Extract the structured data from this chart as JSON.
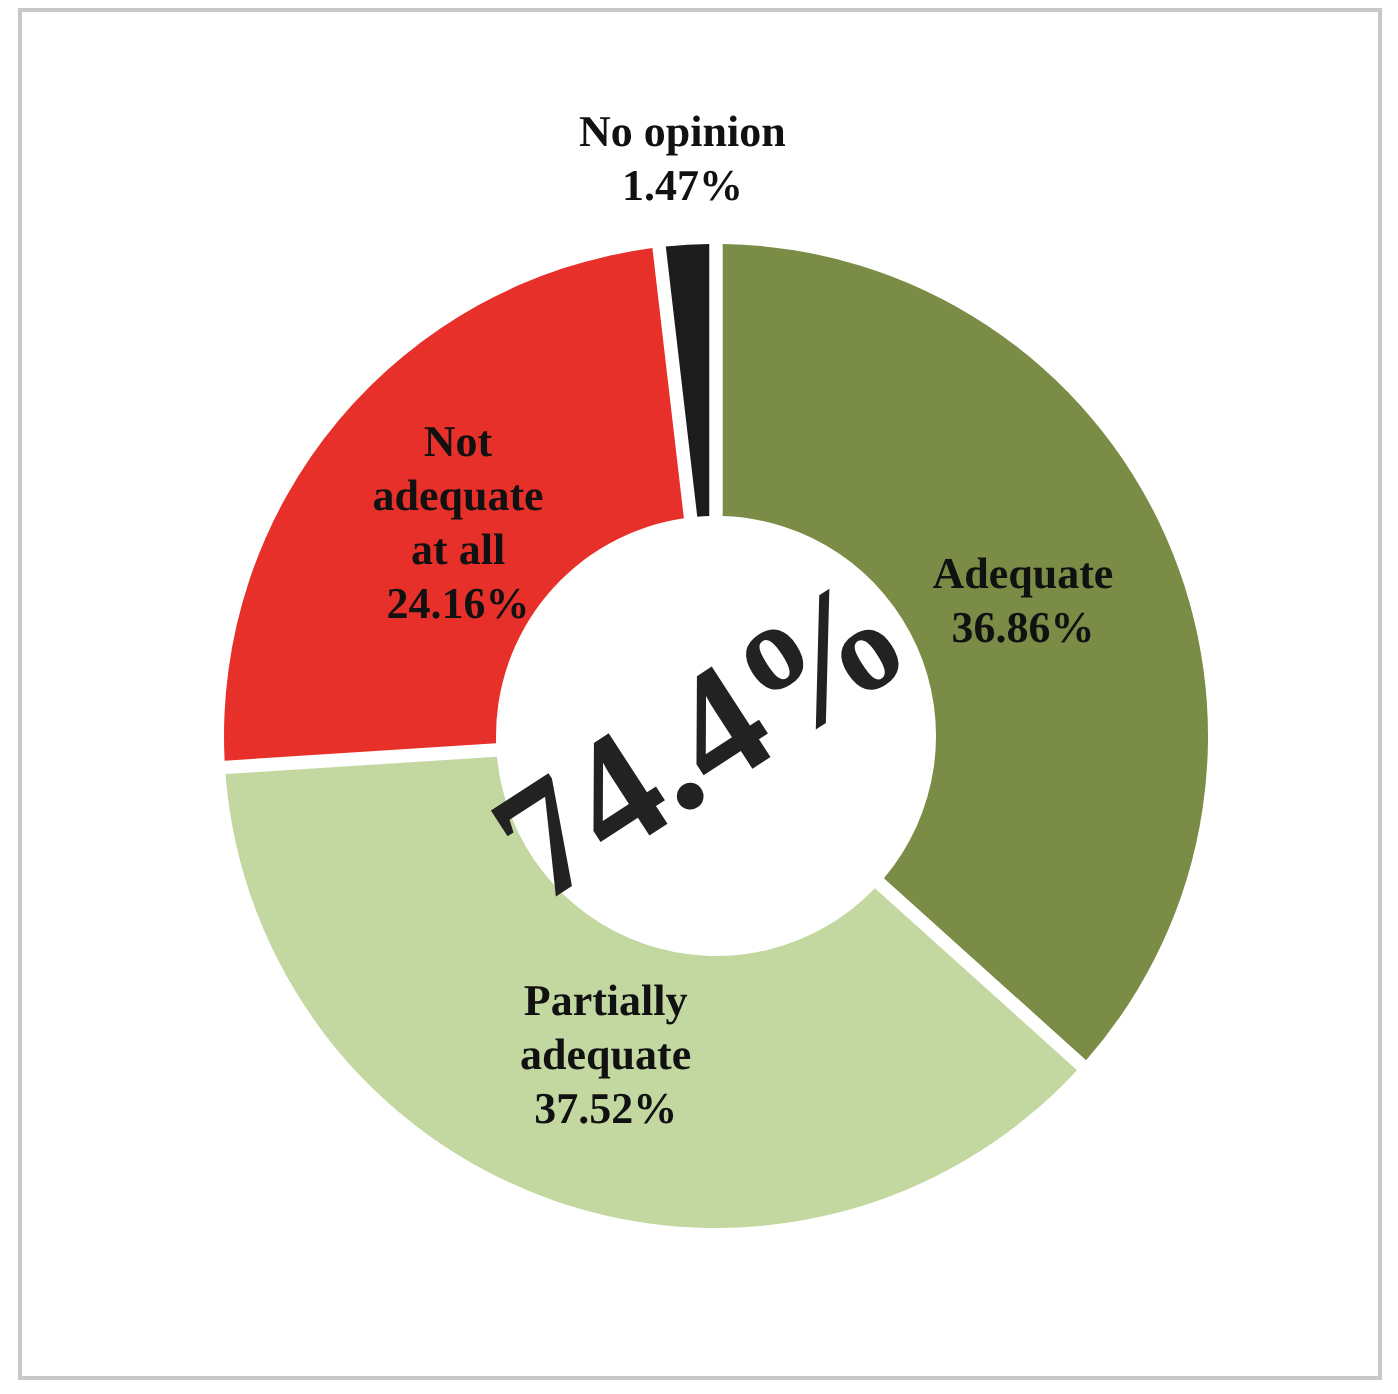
{
  "chart_data": {
    "type": "donut",
    "categories": [
      "Adequate",
      "Partially adequate",
      "Not adequate at all",
      "No opinion"
    ],
    "values": [
      36.86,
      37.52,
      24.16,
      1.47
    ],
    "colors": [
      "#7a8c46",
      "#c3d7a0",
      "#e8302b",
      "#1c1c1c"
    ],
    "value_labels": [
      "36.86%",
      "37.52%",
      "24.16%",
      "1.47%"
    ],
    "annotations": [
      "74.4%"
    ]
  }
}
